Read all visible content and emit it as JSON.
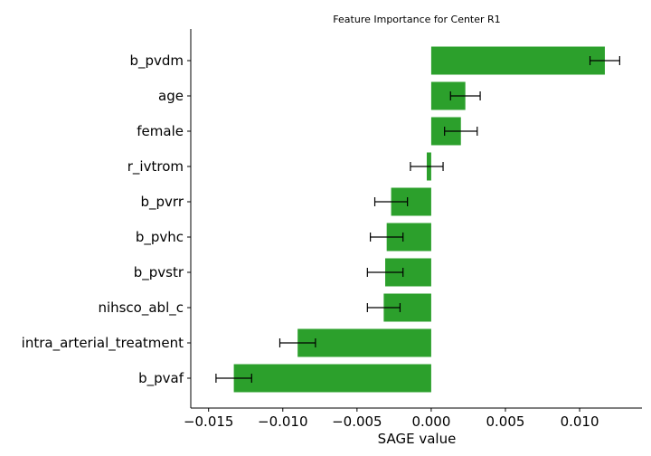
{
  "chart_data": {
    "type": "bar",
    "orientation": "horizontal",
    "title": "Feature Importance for Center R1",
    "xlabel": "SAGE value",
    "ylabel": "",
    "xlim": [
      -0.0162,
      0.0142
    ],
    "xticks": [
      -0.015,
      -0.01,
      -0.005,
      0.0,
      0.005,
      0.01
    ],
    "xtick_labels": [
      "−0.015",
      "−0.010",
      "−0.005",
      "0.000",
      "0.005",
      "0.010"
    ],
    "grid": false,
    "bar_color": "#2ca02c",
    "categories": [
      "b_pvdm",
      "age",
      "female",
      "r_ivtrom",
      "b_pvrr",
      "b_pvhc",
      "b_pvstr",
      "nihsco_abl_c",
      "intra_arterial_treatment",
      "b_pvaf"
    ],
    "values": [
      0.0117,
      0.0023,
      0.002,
      -0.0003,
      -0.0027,
      -0.003,
      -0.0031,
      -0.0032,
      -0.009,
      -0.0133
    ],
    "errors": [
      0.001,
      0.001,
      0.0011,
      0.0011,
      0.0011,
      0.0011,
      0.0012,
      0.0011,
      0.0012,
      0.0012
    ]
  }
}
